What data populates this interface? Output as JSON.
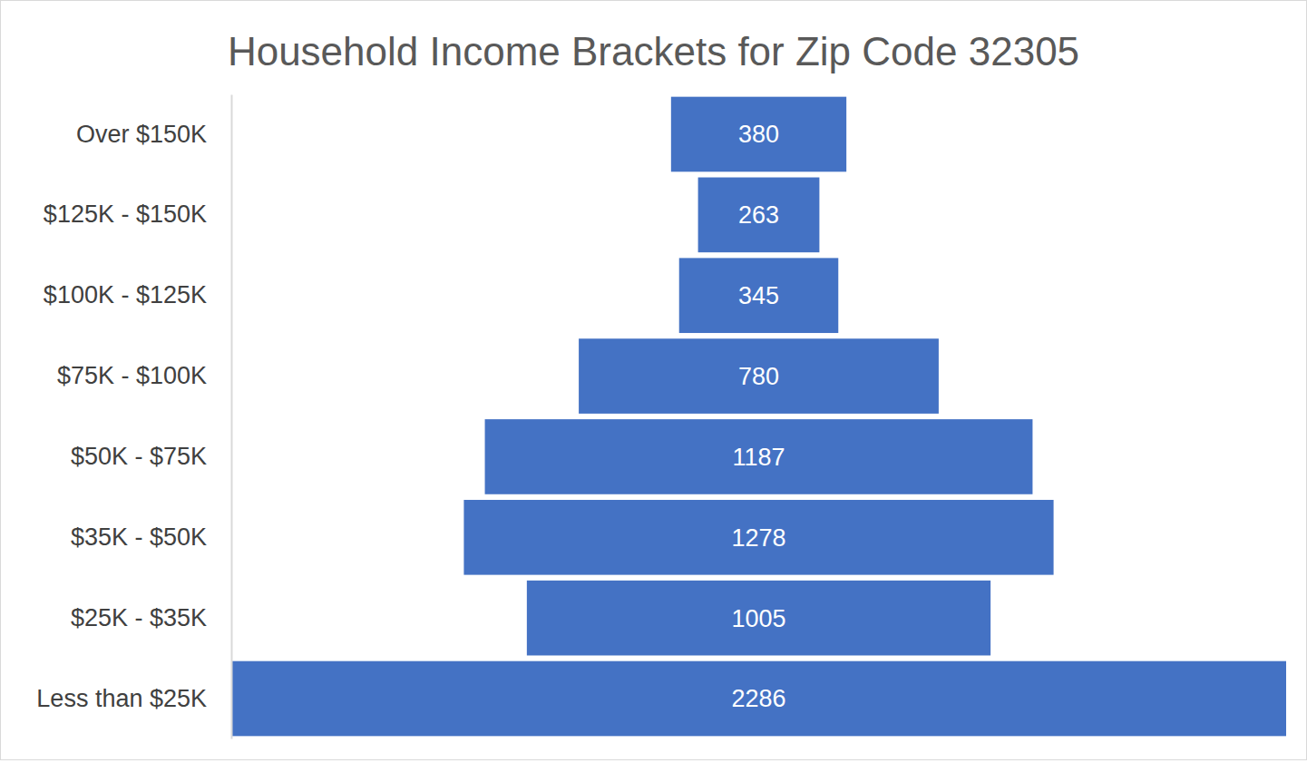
{
  "chart_data": {
    "type": "funnel",
    "title": "Household Income Brackets for Zip Code 32305",
    "categories": [
      "Over $150K",
      "$125K - $150K",
      "$100K - $125K",
      "$75K - $100K",
      "$50K - $75K",
      "$35K - $50K",
      "$25K - $35K",
      "Less than $25K"
    ],
    "values": [
      380,
      263,
      345,
      780,
      1187,
      1278,
      1005,
      2286
    ],
    "color": "#4472c4",
    "orientation": "horizontal",
    "data_labels": true,
    "tick_labels": "y"
  }
}
